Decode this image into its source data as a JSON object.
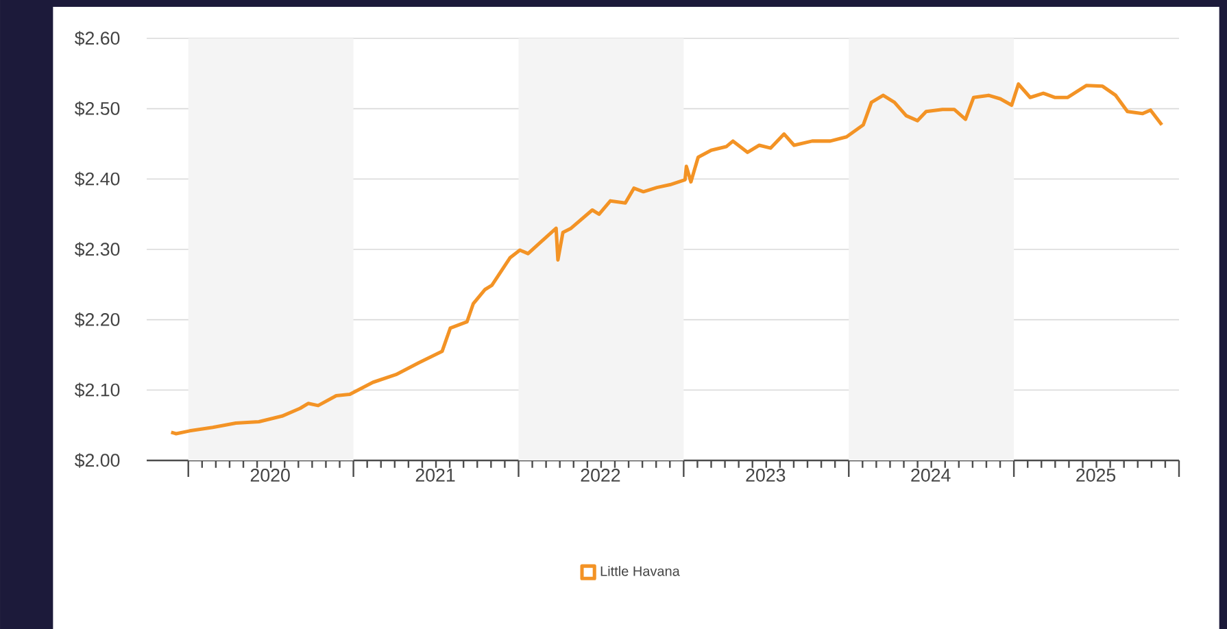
{
  "chart_data": {
    "type": "line",
    "x": [
      "2019-11-24",
      "2019-12-05",
      "2020-01-04",
      "2020-02-24",
      "2020-04-16",
      "2020-06-06",
      "2020-07-27",
      "2020-09-05",
      "2020-09-23",
      "2020-10-15",
      "2020-11-24",
      "2020-12-24",
      "2021-02-13",
      "2021-04-05",
      "2021-05-26",
      "2021-07-16",
      "2021-08-03",
      "2021-09-09",
      "2021-09-23",
      "2021-10-19",
      "2021-11-03",
      "2021-12-13",
      "2022-01-04",
      "2022-01-22",
      "2022-02-13",
      "2022-03-25",
      "2022-03-29",
      "2022-04-09",
      "2022-04-27",
      "2022-06-13",
      "2022-06-28",
      "2022-07-23",
      "2022-08-25",
      "2022-09-13",
      "2022-10-04",
      "2022-11-03",
      "2022-12-02",
      "2023-01-04",
      "2023-01-07",
      "2023-01-17",
      "2023-02-02",
      "2023-03-03",
      "2023-04-05",
      "2023-04-20",
      "2023-05-22",
      "2023-06-17",
      "2023-07-12",
      "2023-08-11",
      "2023-09-02",
      "2023-10-12",
      "2023-11-21",
      "2023-12-27",
      "2024-02-02",
      "2024-02-20",
      "2024-03-18",
      "2024-04-12",
      "2024-05-08",
      "2024-06-02",
      "2024-06-21",
      "2024-07-27",
      "2024-08-22",
      "2024-09-16",
      "2024-10-04",
      "2024-11-06",
      "2024-12-02",
      "2024-12-27",
      "2025-01-11",
      "2025-02-06",
      "2025-03-07",
      "2025-04-01",
      "2025-04-30",
      "2025-06-10",
      "2025-07-16",
      "2025-08-14",
      "2025-09-09",
      "2025-10-12",
      "2025-10-30",
      "2025-11-24"
    ],
    "series": [
      {
        "name": "Little Havana",
        "color": "#f39325",
        "values": [
          2.04,
          2.038,
          2.042,
          2.047,
          2.053,
          2.055,
          2.063,
          2.074,
          2.081,
          2.078,
          2.092,
          2.094,
          2.111,
          2.122,
          2.139,
          2.155,
          2.188,
          2.197,
          2.223,
          2.243,
          2.249,
          2.288,
          2.299,
          2.294,
          2.307,
          2.33,
          2.285,
          2.324,
          2.33,
          2.356,
          2.35,
          2.369,
          2.366,
          2.387,
          2.382,
          2.388,
          2.392,
          2.399,
          2.418,
          2.396,
          2.431,
          2.441,
          2.446,
          2.454,
          2.438,
          2.448,
          2.444,
          2.464,
          2.448,
          2.454,
          2.454,
          2.46,
          2.477,
          2.509,
          2.519,
          2.509,
          2.49,
          2.483,
          2.496,
          2.499,
          2.499,
          2.485,
          2.516,
          2.519,
          2.514,
          2.505,
          2.535,
          2.516,
          2.522,
          2.516,
          2.516,
          2.533,
          2.532,
          2.519,
          2.496,
          2.493,
          2.498,
          2.477
        ]
      }
    ],
    "xlim": [
      "2019-10-01",
      "2026-01-01"
    ],
    "xticks": [
      {
        "value": "2020-01-01",
        "label": null
      },
      {
        "value": "2021-01-01",
        "label": null
      },
      {
        "value": "2022-01-01",
        "label": null
      },
      {
        "value": "2023-01-01",
        "label": null
      },
      {
        "value": "2024-01-01",
        "label": null
      },
      {
        "value": "2025-01-01",
        "label": null
      },
      {
        "value": "2026-01-01",
        "label": null
      },
      {
        "value": "2020-07-01",
        "label": "2020"
      },
      {
        "value": "2021-07-01",
        "label": "2021"
      },
      {
        "value": "2022-07-01",
        "label": "2022"
      },
      {
        "value": "2023-07-01",
        "label": "2023"
      },
      {
        "value": "2024-07-01",
        "label": "2024"
      },
      {
        "value": "2025-07-01",
        "label": "2025"
      }
    ],
    "ylim": [
      2.0,
      2.6
    ],
    "yticks": [
      {
        "value": 2.0,
        "label": "$2.00"
      },
      {
        "value": 2.1,
        "label": "$2.10"
      },
      {
        "value": 2.2,
        "label": "$2.20"
      },
      {
        "value": 2.3,
        "label": "$2.30"
      },
      {
        "value": 2.4,
        "label": "$2.40"
      },
      {
        "value": 2.5,
        "label": "$2.50"
      },
      {
        "value": 2.6,
        "label": "$2.60"
      }
    ],
    "bands": [
      {
        "axis": "x",
        "from": "2020-01-01",
        "to": "2021-01-01",
        "color": "#f4f4f4"
      },
      {
        "axis": "x",
        "from": "2022-01-01",
        "to": "2023-01-01",
        "color": "#f4f4f4"
      },
      {
        "axis": "x",
        "from": "2024-01-01",
        "to": "2025-01-01",
        "color": "#f4f4f4"
      }
    ],
    "grid": "y",
    "legend": "bottom"
  }
}
